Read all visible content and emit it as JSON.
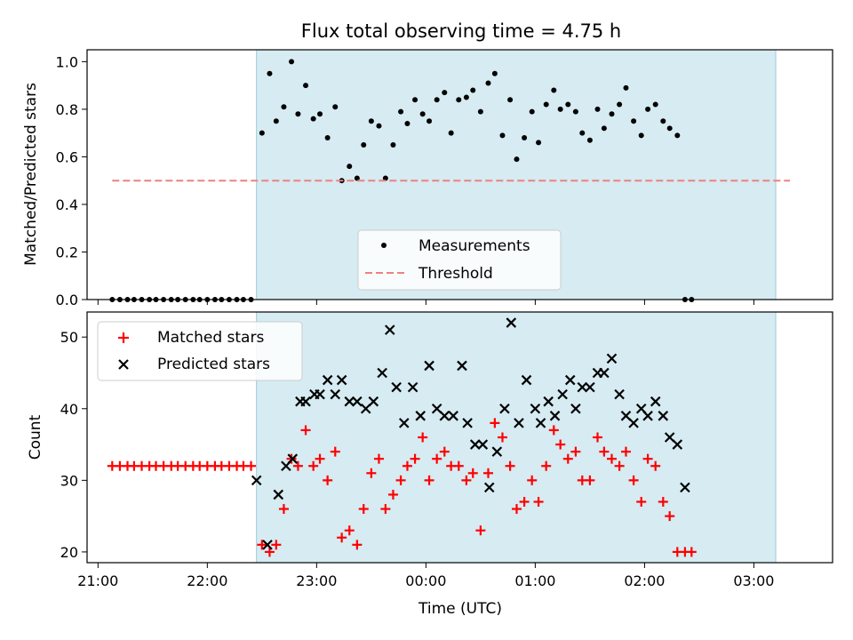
{
  "chart_data": [
    {
      "type": "scatter",
      "title": "Flux total observing time = 4.75 h",
      "xlabel": "",
      "ylabel": "Matched/Predicted stars",
      "x_unit": "hours since 21:00 UTC",
      "xlim": [
        -0.1,
        6.72
      ],
      "ylim": [
        0,
        1.05
      ],
      "yticks": [
        0.0,
        0.2,
        0.4,
        0.6,
        0.8,
        1.0
      ],
      "ytick_labels": [
        "0.0",
        "0.2",
        "0.4",
        "0.6",
        "0.8",
        "1.0"
      ],
      "xticks": [
        0,
        1,
        2,
        3,
        4,
        5,
        6
      ],
      "observing_window": [
        1.45,
        6.2
      ],
      "legend_position": "lower center",
      "series": [
        {
          "name": "Measurements",
          "marker": "dot",
          "color": "#000000",
          "x": [
            0.13,
            0.2,
            0.27,
            0.33,
            0.4,
            0.47,
            0.53,
            0.6,
            0.67,
            0.73,
            0.8,
            0.87,
            0.93,
            1.0,
            1.07,
            1.13,
            1.2,
            1.27,
            1.33,
            1.4,
            1.5,
            1.57,
            1.63,
            1.7,
            1.77,
            1.83,
            1.9,
            1.97,
            2.03,
            2.1,
            2.17,
            2.23,
            2.3,
            2.37,
            2.43,
            2.5,
            2.57,
            2.63,
            2.7,
            2.77,
            2.83,
            2.9,
            2.97,
            3.03,
            3.1,
            3.17,
            3.23,
            3.3,
            3.37,
            3.43,
            3.5,
            3.57,
            3.63,
            3.7,
            3.77,
            3.83,
            3.9,
            3.97,
            4.03,
            4.1,
            4.17,
            4.23,
            4.3,
            4.37,
            4.43,
            4.5,
            4.57,
            4.63,
            4.7,
            4.77,
            4.83,
            4.9,
            4.97,
            5.03,
            5.1,
            5.17,
            5.23,
            5.3,
            5.37,
            5.43,
            5.5,
            5.57,
            5.63,
            5.7,
            5.77,
            5.83,
            5.9,
            5.97,
            6.03,
            6.1,
            6.17,
            6.27,
            6.33
          ],
          "y": [
            0,
            0,
            0,
            0,
            0,
            0,
            0,
            0,
            0,
            0,
            0,
            0,
            0,
            0,
            0,
            0,
            0,
            0,
            0,
            0,
            0.7,
            0.95,
            0.75,
            0.81,
            1.0,
            0.78,
            0.9,
            0.76,
            0.78,
            0.68,
            0.81,
            0.5,
            0.56,
            0.51,
            0.65,
            0.75,
            0.73,
            0.51,
            0.65,
            0.79,
            0.74,
            0.84,
            0.78,
            0.75,
            0.84,
            0.87,
            0.7,
            0.84,
            0.85,
            0.88,
            0.79,
            0.91,
            0.95,
            0.69,
            0.84,
            0.59,
            0.68,
            0.79,
            0.66,
            0.82,
            0.88,
            0.8,
            0.82,
            0.79,
            0.7,
            0.67,
            0.8,
            0.72,
            0.78,
            0.82,
            0.89,
            0.75,
            0.69,
            0.8,
            0.82,
            0.75,
            0.72,
            0.69,
            0,
            0,
            null,
            null,
            null,
            null,
            null,
            null,
            null,
            null,
            null,
            null,
            null,
            null,
            null
          ]
        },
        {
          "name": "Threshold",
          "style": "dashed",
          "color": "#f08080",
          "x": [
            0.13,
            6.33
          ],
          "y": [
            0.5,
            0.5
          ]
        }
      ]
    },
    {
      "type": "scatter",
      "title": "",
      "xlabel": "Time (UTC)",
      "ylabel": "Count",
      "x_unit": "hours since 21:00 UTC",
      "xlim": [
        -0.1,
        6.72
      ],
      "ylim": [
        18.5,
        53.5
      ],
      "yticks": [
        20,
        30,
        40,
        50
      ],
      "ytick_labels": [
        "20",
        "30",
        "40",
        "50"
      ],
      "xticks": [
        0,
        1,
        2,
        3,
        4,
        5,
        6
      ],
      "xtick_labels": [
        "21:00",
        "22:00",
        "23:00",
        "00:00",
        "01:00",
        "02:00",
        "03:00"
      ],
      "observing_window": [
        1.45,
        6.2
      ],
      "legend_position": "upper left",
      "series": [
        {
          "name": "Matched stars",
          "marker": "plus",
          "color": "#ff0000",
          "x": [
            0.13,
            0.2,
            0.27,
            0.33,
            0.4,
            0.47,
            0.53,
            0.6,
            0.67,
            0.73,
            0.8,
            0.87,
            0.93,
            1.0,
            1.07,
            1.13,
            1.2,
            1.27,
            1.33,
            1.4,
            1.5,
            1.57,
            1.63,
            1.7,
            1.77,
            1.83,
            1.9,
            1.97,
            2.03,
            2.1,
            2.17,
            2.23,
            2.3,
            2.37,
            2.43,
            2.5,
            2.57,
            2.63,
            2.7,
            2.77,
            2.83,
            2.9,
            2.97,
            3.03,
            3.1,
            3.17,
            3.23,
            3.3,
            3.37,
            3.43,
            3.5,
            3.57,
            3.63,
            3.7,
            3.77,
            3.83,
            3.9,
            3.97,
            4.03,
            4.1,
            4.17,
            4.23,
            4.3,
            4.37,
            4.43,
            4.5,
            4.57,
            4.63,
            4.7,
            4.77,
            4.83,
            4.9,
            4.97,
            5.03,
            5.1,
            5.17,
            5.23,
            5.3,
            5.37,
            5.43,
            5.5,
            5.57,
            5.63,
            5.7,
            5.77,
            5.83,
            5.9,
            5.97,
            6.03,
            6.1,
            6.17,
            6.23,
            6.3,
            6.37
          ],
          "y": [
            32,
            32,
            32,
            32,
            32,
            32,
            32,
            32,
            32,
            32,
            32,
            32,
            32,
            32,
            32,
            32,
            32,
            32,
            32,
            32,
            21,
            20,
            21,
            26,
            33,
            32,
            37,
            32,
            33,
            30,
            34,
            22,
            23,
            21,
            26,
            31,
            33,
            26,
            28,
            30,
            32,
            33,
            36,
            30,
            33,
            34,
            32,
            32,
            30,
            31,
            23,
            31,
            38,
            36,
            32,
            26,
            27,
            30,
            27,
            32,
            37,
            35,
            33,
            34,
            30,
            30,
            36,
            34,
            33,
            32,
            34,
            30,
            27,
            33,
            32,
            27,
            25,
            20,
            20,
            20,
            null,
            null,
            null,
            null,
            null,
            null,
            null,
            null,
            null,
            null,
            null,
            null,
            null,
            null
          ]
        },
        {
          "name": "Predicted stars",
          "marker": "x",
          "color": "#000000",
          "x": [
            1.45,
            1.55,
            1.65,
            1.72,
            1.78,
            1.85,
            1.9,
            1.98,
            2.03,
            2.1,
            2.17,
            2.23,
            2.3,
            2.37,
            2.45,
            2.52,
            2.6,
            2.67,
            2.73,
            2.8,
            2.88,
            2.95,
            3.03,
            3.1,
            3.17,
            3.25,
            3.33,
            3.38,
            3.45,
            3.52,
            3.58,
            3.65,
            3.72,
            3.78,
            3.85,
            3.92,
            4.0,
            4.05,
            4.12,
            4.18,
            4.25,
            4.32,
            4.37,
            4.43,
            4.5,
            4.57,
            4.63,
            4.7,
            4.77,
            4.83,
            4.9,
            4.97,
            5.03,
            5.1,
            5.17,
            5.23,
            5.3,
            5.37,
            5.43,
            5.5,
            5.57,
            5.63,
            5.7,
            5.77,
            5.83,
            5.9,
            5.97,
            6.03,
            6.1,
            6.2
          ],
          "y": [
            30,
            21,
            28,
            32,
            33,
            41,
            41,
            42,
            42,
            44,
            42,
            44,
            41,
            41,
            40,
            41,
            45,
            51,
            43,
            38,
            43,
            39,
            46,
            40,
            39,
            39,
            46,
            38,
            35,
            35,
            29,
            34,
            40,
            52,
            38,
            44,
            40,
            38,
            41,
            39,
            42,
            44,
            40,
            43,
            43,
            45,
            45,
            47,
            42,
            39,
            38,
            40,
            39,
            41,
            39,
            36,
            35,
            29,
            null,
            null,
            null,
            null,
            null,
            null,
            null,
            null,
            null,
            null,
            null,
            null
          ]
        }
      ]
    }
  ]
}
